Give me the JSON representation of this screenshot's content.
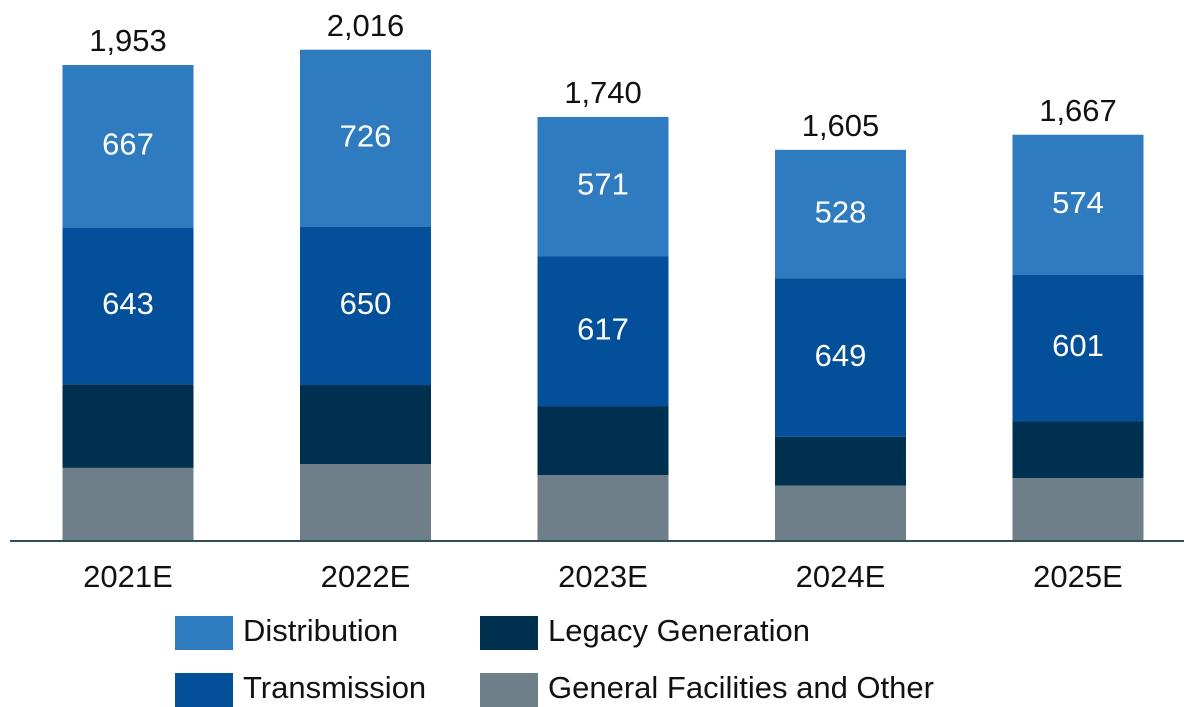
{
  "chart_data": {
    "type": "stacked_bar",
    "categories": [
      "2021E",
      "2022E",
      "2023E",
      "2024E",
      "2025E"
    ],
    "series": [
      {
        "name": "Distribution",
        "color": "#2e7bbf",
        "values": [
          667,
          726,
          571,
          528,
          574
        ],
        "show_labels": true
      },
      {
        "name": "Transmission",
        "color": "#034f9a",
        "values": [
          643,
          650,
          617,
          649,
          601
        ],
        "show_labels": true
      },
      {
        "name": "Legacy Generation",
        "color": "#00304f",
        "values": [
          343,
          324,
          282,
          201,
          234
        ],
        "show_labels": false
      },
      {
        "name": "General Facilities and Other",
        "color": "#6f7f8a",
        "values": [
          300,
          316,
          270,
          227,
          258
        ],
        "show_labels": false
      }
    ],
    "totals": {
      "values": [
        1953,
        2016,
        1740,
        1605,
        1667
      ],
      "value_labels": [
        "1,953",
        "2,016",
        "1,740",
        "1,605",
        "1,667"
      ]
    }
  }
}
